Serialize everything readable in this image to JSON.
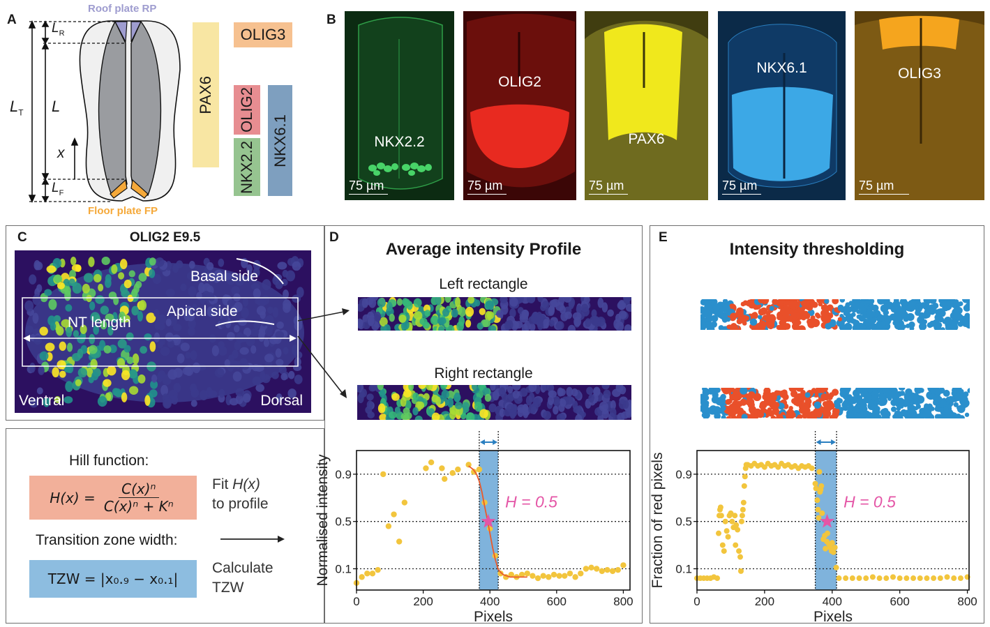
{
  "panelA": {
    "letter": "A",
    "roof_plate": "Roof plate RP",
    "floor_plate": "Floor plate FP",
    "LT": "L",
    "LT_sub": "T",
    "LR": "L",
    "LR_sub": "R",
    "L": "L",
    "LF": "L",
    "LF_sub": "F",
    "x": "x",
    "genes": [
      {
        "name": "PAX6",
        "color": "#f8e6a3"
      },
      {
        "name": "OLIG3",
        "color": "#f6c190"
      },
      {
        "name": "OLIG2",
        "color": "#e78d91"
      },
      {
        "name": "NKX2.2",
        "color": "#96c490"
      },
      {
        "name": "NKX6.1",
        "color": "#7e9fbf"
      }
    ],
    "colors": {
      "roof": "#9e9ccf",
      "floor": "#f5a93a",
      "inner": "#9a9ca0",
      "outer": "#f0f0f0"
    }
  },
  "panelB": {
    "letter": "B",
    "images": [
      {
        "label": "NKX2.2",
        "scale": "75 µm",
        "bg": "#0c2b12",
        "cell": "#3ec85a"
      },
      {
        "label": "OLIG2",
        "scale": "75 µm",
        "bg": "#3b0606",
        "cell": "#f0281e"
      },
      {
        "label": "PAX6",
        "scale": "75 µm",
        "bg": "#403d10",
        "cell": "#f4ee1c"
      },
      {
        "label": "NKX6.1",
        "scale": "75 µm",
        "bg": "#0b2a48",
        "cell": "#3ca8e6"
      },
      {
        "label": "OLIG3",
        "scale": "75 µm",
        "bg": "#5a3f0c",
        "cell": "#f5a51e"
      }
    ]
  },
  "panelC": {
    "letter": "C",
    "title": "OLIG2 E9.5",
    "basal": "Basal side",
    "apical": "Apical side",
    "nt_length": "NT length",
    "ventral": "Ventral",
    "dorsal": "Dorsal"
  },
  "hill": {
    "title": "Hill function:",
    "formula_lhs": "H(x) =",
    "formula_num": "C(x)ⁿ",
    "formula_den": "C(x)ⁿ + Kⁿ",
    "fit_line1": "Fit ",
    "fit_italic": "H(x)",
    "fit_line2": "to profile",
    "tzw_title": "Transition zone width:",
    "tzw_formula": "TZW = |x₀.₉ − x₀.₁|",
    "calc_line1": "Calculate",
    "calc_line2": "TZW",
    "hill_color": "#f2b09a",
    "tzw_color": "#8dbde0"
  },
  "panelD": {
    "letter": "D",
    "title": "Average intensity Profile",
    "left_rect": "Left rectangle",
    "right_rect": "Right rectangle"
  },
  "panelE": {
    "letter": "E",
    "title": "Intensity thresholding"
  },
  "chart_data": [
    {
      "type": "scatter",
      "title": "",
      "xlabel": "Pixels",
      "ylabel": "Normalised intensity",
      "xlim": [
        0,
        820
      ],
      "ylim": [
        -0.08,
        1.1
      ],
      "xticks": [
        0,
        200,
        400,
        600,
        800
      ],
      "yticks": [
        0.1,
        0.5,
        0.9
      ],
      "gridlines_y": [
        0.1,
        0.5,
        0.9
      ],
      "transition_zone": [
        368,
        425
      ],
      "midpoint": {
        "x": 395,
        "y": 0.5
      },
      "annotation": "H = 0.5",
      "series": [
        {
          "name": "profile",
          "x": [
            0,
            16,
            32,
            48,
            64,
            80,
            96,
            112,
            128,
            144,
            208,
            224,
            256,
            264,
            288,
            304,
            336,
            352,
            368,
            384,
            400,
            416,
            432,
            448,
            464,
            480,
            496,
            512,
            528,
            544,
            560,
            576,
            592,
            608,
            624,
            640,
            656,
            672,
            688,
            704,
            720,
            736,
            752,
            768,
            784,
            800
          ],
          "y": [
            -0.02,
            0.03,
            0.06,
            0.06,
            0.09,
            0.9,
            0.46,
            0.56,
            0.33,
            0.66,
            0.95,
            1.0,
            0.95,
            0.86,
            0.91,
            0.94,
            0.98,
            0.92,
            0.94,
            0.66,
            0.44,
            0.21,
            0.06,
            0.03,
            0.05,
            0.03,
            0.05,
            0.06,
            0.04,
            0.02,
            0.04,
            0.03,
            0.05,
            0.04,
            0.04,
            0.06,
            0.03,
            0.06,
            0.1,
            0.11,
            0.1,
            0.08,
            0.09,
            0.08,
            0.09,
            0.13
          ]
        },
        {
          "name": "hill-fit",
          "x": [
            336,
            350,
            360,
            368,
            376,
            384,
            392,
            400,
            408,
            416,
            424,
            432,
            440,
            460,
            480,
            512
          ],
          "y": [
            0.97,
            0.94,
            0.9,
            0.84,
            0.75,
            0.63,
            0.52,
            0.4,
            0.28,
            0.18,
            0.1,
            0.07,
            0.05,
            0.03,
            0.03,
            0.03
          ]
        }
      ],
      "colors": {
        "points": "#f2c53d",
        "fit": "#ea5a2a",
        "zone": "#7fb3dc",
        "star": "#e455a6",
        "arrow": "#2a7fc0"
      }
    },
    {
      "type": "scatter",
      "title": "",
      "xlabel": "Pixels",
      "ylabel": "Fraction of red pixels",
      "xlim": [
        0,
        805
      ],
      "ylim": [
        -0.08,
        1.1
      ],
      "xticks": [
        0,
        200,
        400,
        600,
        800
      ],
      "yticks": [
        0.1,
        0.5,
        0.9
      ],
      "gridlines_y": [
        0.1,
        0.5,
        0.9
      ],
      "transition_zone": [
        350,
        413
      ],
      "midpoint": {
        "x": 385,
        "y": 0.5
      },
      "annotation": "H = 0.5",
      "series": [
        {
          "name": "fraction",
          "x": [
            0,
            10,
            20,
            30,
            40,
            50,
            60,
            64,
            66,
            68,
            70,
            72,
            76,
            80,
            84,
            88,
            92,
            96,
            100,
            104,
            108,
            112,
            114,
            116,
            120,
            124,
            128,
            130,
            132,
            134,
            136,
            138,
            140,
            142,
            144,
            146,
            150,
            160,
            170,
            180,
            190,
            200,
            210,
            220,
            230,
            240,
            250,
            260,
            270,
            280,
            290,
            300,
            310,
            320,
            330,
            340,
            350,
            352,
            356,
            358,
            360,
            362,
            364,
            366,
            368,
            370,
            374,
            378,
            380,
            384,
            386,
            390,
            394,
            398,
            400,
            404,
            408,
            412,
            420,
            440,
            460,
            480,
            500,
            520,
            540,
            560,
            580,
            600,
            620,
            640,
            660,
            680,
            700,
            720,
            740,
            760,
            780,
            800
          ],
          "y": [
            0.02,
            0.02,
            0.02,
            0.02,
            0.02,
            0.03,
            0.02,
            0.4,
            0.55,
            0.6,
            0.62,
            0.55,
            0.3,
            0.25,
            0.5,
            0.42,
            0.37,
            0.55,
            0.57,
            0.5,
            0.45,
            0.55,
            0.3,
            0.47,
            0.43,
            0.25,
            0.2,
            0.08,
            0.5,
            0.55,
            0.6,
            0.66,
            0.8,
            0.88,
            0.95,
            0.98,
            0.98,
            0.97,
            0.99,
            0.97,
            0.98,
            0.96,
            0.99,
            0.97,
            0.98,
            0.96,
            0.99,
            0.97,
            0.98,
            0.96,
            0.97,
            0.95,
            0.97,
            0.96,
            0.97,
            0.95,
            0.82,
            0.78,
            0.68,
            0.6,
            0.53,
            0.92,
            0.75,
            0.77,
            0.8,
            0.57,
            0.35,
            0.38,
            0.27,
            0.33,
            0.4,
            0.31,
            0.28,
            0.25,
            0.32,
            0.24,
            0.28,
            0.11,
            0.02,
            0.02,
            0.02,
            0.02,
            0.02,
            0.03,
            0.02,
            0.02,
            0.03,
            0.02,
            0.02,
            0.02,
            0.02,
            0.02,
            0.02,
            0.02,
            0.03,
            0.02,
            0.02,
            0.03
          ]
        }
      ],
      "colors": {
        "points": "#f2c53d",
        "zone": "#7fb3dc",
        "star": "#e455a6",
        "arrow": "#2a7fc0"
      }
    }
  ]
}
